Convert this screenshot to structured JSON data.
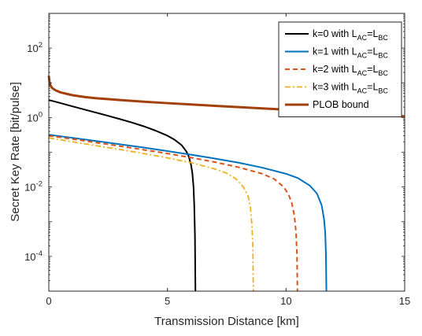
{
  "chart_data": {
    "type": "line",
    "title": "",
    "xlabel": "Transmission Distance [km]",
    "ylabel": "Secret Key Rate [bit/pulse]",
    "xlim": [
      0,
      15
    ],
    "ylim": [
      1e-05,
      1000
    ],
    "yscale": "log",
    "grid": false,
    "legend_position": "top-right",
    "x_ticks": [
      {
        "value": 0,
        "label": "0"
      },
      {
        "value": 5,
        "label": "5"
      },
      {
        "value": 10,
        "label": "10"
      },
      {
        "value": 15,
        "label": "15"
      }
    ],
    "y_ticks": [
      {
        "value": 0.0001,
        "base": "10",
        "exp": "-4"
      },
      {
        "value": 0.01,
        "base": "10",
        "exp": "-2"
      },
      {
        "value": 1,
        "base": "10",
        "exp": "0"
      },
      {
        "value": 100,
        "base": "10",
        "exp": "2"
      }
    ],
    "series": [
      {
        "name": "k=0 with L_AC=L_BC",
        "legend": {
          "pre": "k=0 with L",
          "sub1": "AC",
          "mid": "=L",
          "sub2": "BC"
        },
        "color": "#000000",
        "style": "solid",
        "width": 2,
        "x": [
          0,
          0.5,
          1,
          1.5,
          2,
          2.5,
          3,
          3.5,
          4,
          4.5,
          5,
          5.3,
          5.6,
          5.8,
          5.9,
          6.0,
          6.05,
          6.1,
          6.13,
          6.16,
          6.18
        ],
        "y": [
          3.2,
          2.6,
          2.1,
          1.7,
          1.38,
          1.12,
          0.9,
          0.72,
          0.56,
          0.42,
          0.3,
          0.23,
          0.16,
          0.105,
          0.075,
          0.042,
          0.025,
          0.01,
          0.003,
          0.0004,
          1e-05
        ]
      },
      {
        "name": "k=1 with L_AC=L_BC",
        "legend": {
          "pre": "k=1 with L",
          "sub1": "AC",
          "mid": "=L",
          "sub2": "BC"
        },
        "color": "#0072BD",
        "style": "solid",
        "width": 2,
        "x": [
          0,
          1,
          2,
          3,
          4,
          5,
          6,
          7,
          8,
          9,
          10,
          10.5,
          11,
          11.3,
          11.5,
          11.6,
          11.65,
          11.68,
          11.7
        ],
        "y": [
          0.32,
          0.26,
          0.21,
          0.17,
          0.137,
          0.108,
          0.085,
          0.066,
          0.05,
          0.036,
          0.024,
          0.018,
          0.011,
          0.0065,
          0.003,
          0.0012,
          0.0005,
          0.00012,
          1e-05
        ]
      },
      {
        "name": "k=2 with L_AC=L_BC",
        "legend": {
          "pre": "k=2 with L",
          "sub1": "AC",
          "mid": "=L",
          "sub2": "BC"
        },
        "color": "#D95319",
        "style": "dashed",
        "width": 2,
        "x": [
          0,
          1,
          2,
          3,
          4,
          5,
          6,
          7,
          8,
          9,
          9.5,
          9.9,
          10.1,
          10.25,
          10.35,
          10.42,
          10.46,
          10.48
        ],
        "y": [
          0.3,
          0.24,
          0.19,
          0.15,
          0.118,
          0.092,
          0.07,
          0.052,
          0.037,
          0.024,
          0.017,
          0.01,
          0.0062,
          0.0033,
          0.0015,
          0.0005,
          0.00012,
          1e-05
        ]
      },
      {
        "name": "k=3 with L_AC=L_BC",
        "legend": {
          "pre": "k=3 with L",
          "sub1": "AC",
          "mid": "=L",
          "sub2": "BC"
        },
        "color": "#EDB120",
        "style": "dashdot",
        "width": 1.8,
        "x": [
          0,
          1,
          2,
          3,
          4,
          5,
          6,
          7,
          7.5,
          7.9,
          8.2,
          8.4,
          8.5,
          8.56,
          8.6,
          8.62
        ],
        "y": [
          0.26,
          0.2,
          0.155,
          0.12,
          0.092,
          0.069,
          0.05,
          0.033,
          0.025,
          0.017,
          0.01,
          0.0055,
          0.0025,
          0.0008,
          0.0002,
          1e-05
        ]
      },
      {
        "name": "PLOB bound",
        "legend": {
          "pre": "PLOB bound",
          "sub1": "",
          "mid": "",
          "sub2": ""
        },
        "color": "#A2400A",
        "style": "solid",
        "width": 3,
        "x": [
          0,
          0.03,
          0.08,
          0.15,
          0.3,
          0.5,
          1,
          1.5,
          2,
          3,
          4,
          5,
          6,
          7,
          8,
          9,
          10,
          11,
          12,
          13,
          14,
          15
        ],
        "y": [
          16,
          10.5,
          8.2,
          7.0,
          6.0,
          5.3,
          4.4,
          3.9,
          3.6,
          3.2,
          2.85,
          2.6,
          2.38,
          2.18,
          2.0,
          1.84,
          1.69,
          1.55,
          1.42,
          1.3,
          1.19,
          1.08
        ]
      }
    ]
  }
}
